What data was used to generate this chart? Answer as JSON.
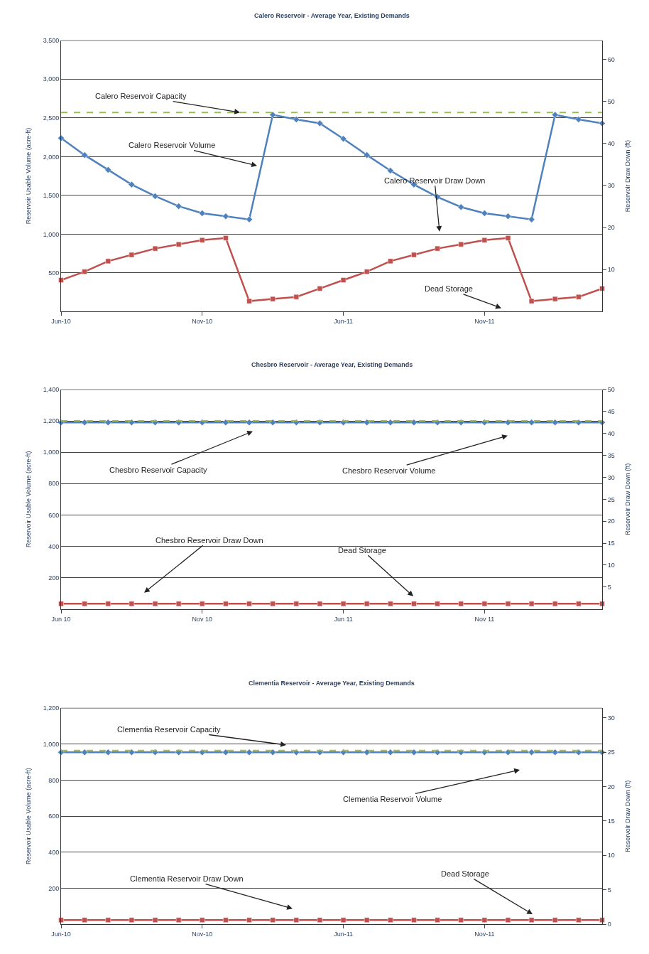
{
  "chart_data": [
    {
      "type": "line",
      "title": "Calero Reservoir - Average Year, Existing Demands",
      "ylabel": "Reservoir Usable Volume (acre-ft)",
      "y2label": "Reservoir Draw Down (ft)",
      "categories": [
        "Jun-10",
        null,
        null,
        null,
        null,
        null,
        "Nov-10",
        null,
        null,
        null,
        null,
        null,
        "Jun-11",
        null,
        null,
        null,
        null,
        null,
        "Nov-11",
        null,
        null,
        null,
        null,
        null
      ],
      "ylim": [
        0,
        3500
      ],
      "yticks": [
        500,
        {
          "value": 1000,
          "label": "1,000"
        },
        {
          "value": 1500,
          "label": "1,500"
        },
        {
          "value": 2000,
          "label": "2,000"
        },
        {
          "value": 2500,
          "label": "2,500"
        },
        {
          "value": 3000,
          "label": "3,000"
        },
        {
          "value": 3500,
          "label": "3,500"
        }
      ],
      "y2lim": [
        0,
        64.5
      ],
      "y2ticks": [
        10,
        20,
        30,
        40,
        50,
        60
      ],
      "series": [
        {
          "color": "#4f81bd",
          "marker": "diamond",
          "values": [
            2240,
            2020,
            1830,
            1640,
            1490,
            1360,
            1270,
            1230,
            1190,
            2540,
            2480,
            2430,
            2230,
            2020,
            1820,
            1640,
            1480,
            1350,
            1270,
            1230,
            1190,
            2540,
            2480,
            2430
          ]
        },
        {
          "color": "#c0504d",
          "marker": "square",
          "axis": "y2",
          "values": [
            7.5,
            9.5,
            12,
            13.5,
            15,
            16,
            17,
            17.5,
            2.5,
            3,
            3.5,
            5.5,
            7.5,
            9.5,
            12,
            13.5,
            15,
            16,
            17,
            17.5,
            2.5,
            3,
            3.5,
            5.5
          ]
        }
      ],
      "ref_lines": [
        {
          "axis": "y",
          "value": 2570,
          "color": "#9bbb59",
          "line_style": "dashed"
        }
      ],
      "annotations": [
        {
          "text": "Calero Reservoir Capacity",
          "y": 2570
        },
        "Calero Reservoir Volume",
        "Calero Reservoir Draw Down",
        "Dead Storage"
      ],
      "grid": "y"
    },
    {
      "type": "line",
      "title": "Chesbro Reservoir - Average Year, Existing Demands",
      "ylabel": "Reservoir Usable Volume (acre-ft)",
      "y2label": "Reservoir Draw Down (ft)",
      "categories": [
        "Jun 10",
        null,
        null,
        null,
        null,
        null,
        "Nov 10",
        null,
        null,
        null,
        null,
        null,
        "Jun 11",
        null,
        null,
        null,
        null,
        null,
        "Nov 11",
        null,
        null,
        null,
        null,
        null
      ],
      "ylim": [
        0,
        1400
      ],
      "yticks": [
        200,
        400,
        600,
        800,
        {
          "value": 1000,
          "label": "1,000"
        },
        {
          "value": 1200,
          "label": "1,200"
        },
        {
          "value": 1400,
          "label": "1,400"
        }
      ],
      "y2lim": [
        0,
        50
      ],
      "y2ticks": [
        5,
        10,
        15,
        20,
        25,
        30,
        35,
        40,
        45,
        50
      ],
      "series": [
        {
          "color": "#4f81bd",
          "marker": "diamond",
          "values": [
            1190,
            1190,
            1190,
            1190,
            1190,
            1190,
            1190,
            1190,
            1190,
            1190,
            1190,
            1190,
            1190,
            1190,
            1190,
            1190,
            1190,
            1190,
            1190,
            1190,
            1190,
            1190,
            1190,
            1190
          ]
        },
        {
          "color": "#c0504d",
          "marker": "square",
          "axis": "y2",
          "values": [
            1.2,
            1.2,
            1.2,
            1.2,
            1.2,
            1.2,
            1.2,
            1.2,
            1.2,
            1.2,
            1.2,
            1.2,
            1.2,
            1.2,
            1.2,
            1.2,
            1.2,
            1.2,
            1.2,
            1.2,
            1.2,
            1.2,
            1.2,
            1.2
          ]
        }
      ],
      "ref_lines": [
        {
          "axis": "y",
          "value": 1200,
          "color": "#9bbb59",
          "line_style": "dashed"
        }
      ],
      "annotations": [
        "Chesbro Reservoir Capacity",
        "Chesbro Reservoir Volume",
        "Chesbro Reservoir Draw Down",
        "Dead Storage"
      ],
      "grid": "y"
    },
    {
      "type": "line",
      "title": "Clementia Reservoir - Average Year, Existing Demands",
      "ylabel": "Reservoir Usable Volume (acre-ft)",
      "y2label": "Reservoir Draw Down (ft)",
      "categories": [
        "Jun-10",
        null,
        null,
        null,
        null,
        null,
        "Nov-10",
        null,
        null,
        null,
        null,
        null,
        "Jun-11",
        null,
        null,
        null,
        null,
        null,
        "Nov-11",
        null,
        null,
        null,
        null,
        null
      ],
      "ylim": [
        0,
        1200
      ],
      "yticks": [
        200,
        400,
        600,
        800,
        {
          "value": 1000,
          "label": "1,000"
        },
        {
          "value": 1200,
          "label": "1,200"
        }
      ],
      "y2lim": [
        0,
        31.4
      ],
      "y2ticks": [
        0,
        5,
        10,
        15,
        20,
        25,
        30
      ],
      "series": [
        {
          "color": "#4f81bd",
          "marker": "diamond",
          "values": [
            955,
            955,
            955,
            955,
            955,
            955,
            955,
            955,
            955,
            955,
            955,
            955,
            955,
            955,
            955,
            955,
            955,
            955,
            955,
            955,
            955,
            955,
            955,
            955
          ]
        },
        {
          "color": "#c0504d",
          "marker": "square",
          "axis": "y2",
          "values": [
            0.6,
            0.6,
            0.6,
            0.6,
            0.6,
            0.6,
            0.6,
            0.6,
            0.6,
            0.6,
            0.6,
            0.6,
            0.6,
            0.6,
            0.6,
            0.6,
            0.6,
            0.6,
            0.6,
            0.6,
            0.6,
            0.6,
            0.6,
            0.6
          ]
        }
      ],
      "ref_lines": [
        {
          "axis": "y",
          "value": 965,
          "color": "#9bbb59",
          "line_style": "dashed"
        }
      ],
      "annotations": [
        "Clementia Reservoir Capacity",
        "Clementia Reservoir Volume",
        "Clementia Reservoir Draw Down",
        "Dead Storage"
      ],
      "grid": "y"
    }
  ]
}
